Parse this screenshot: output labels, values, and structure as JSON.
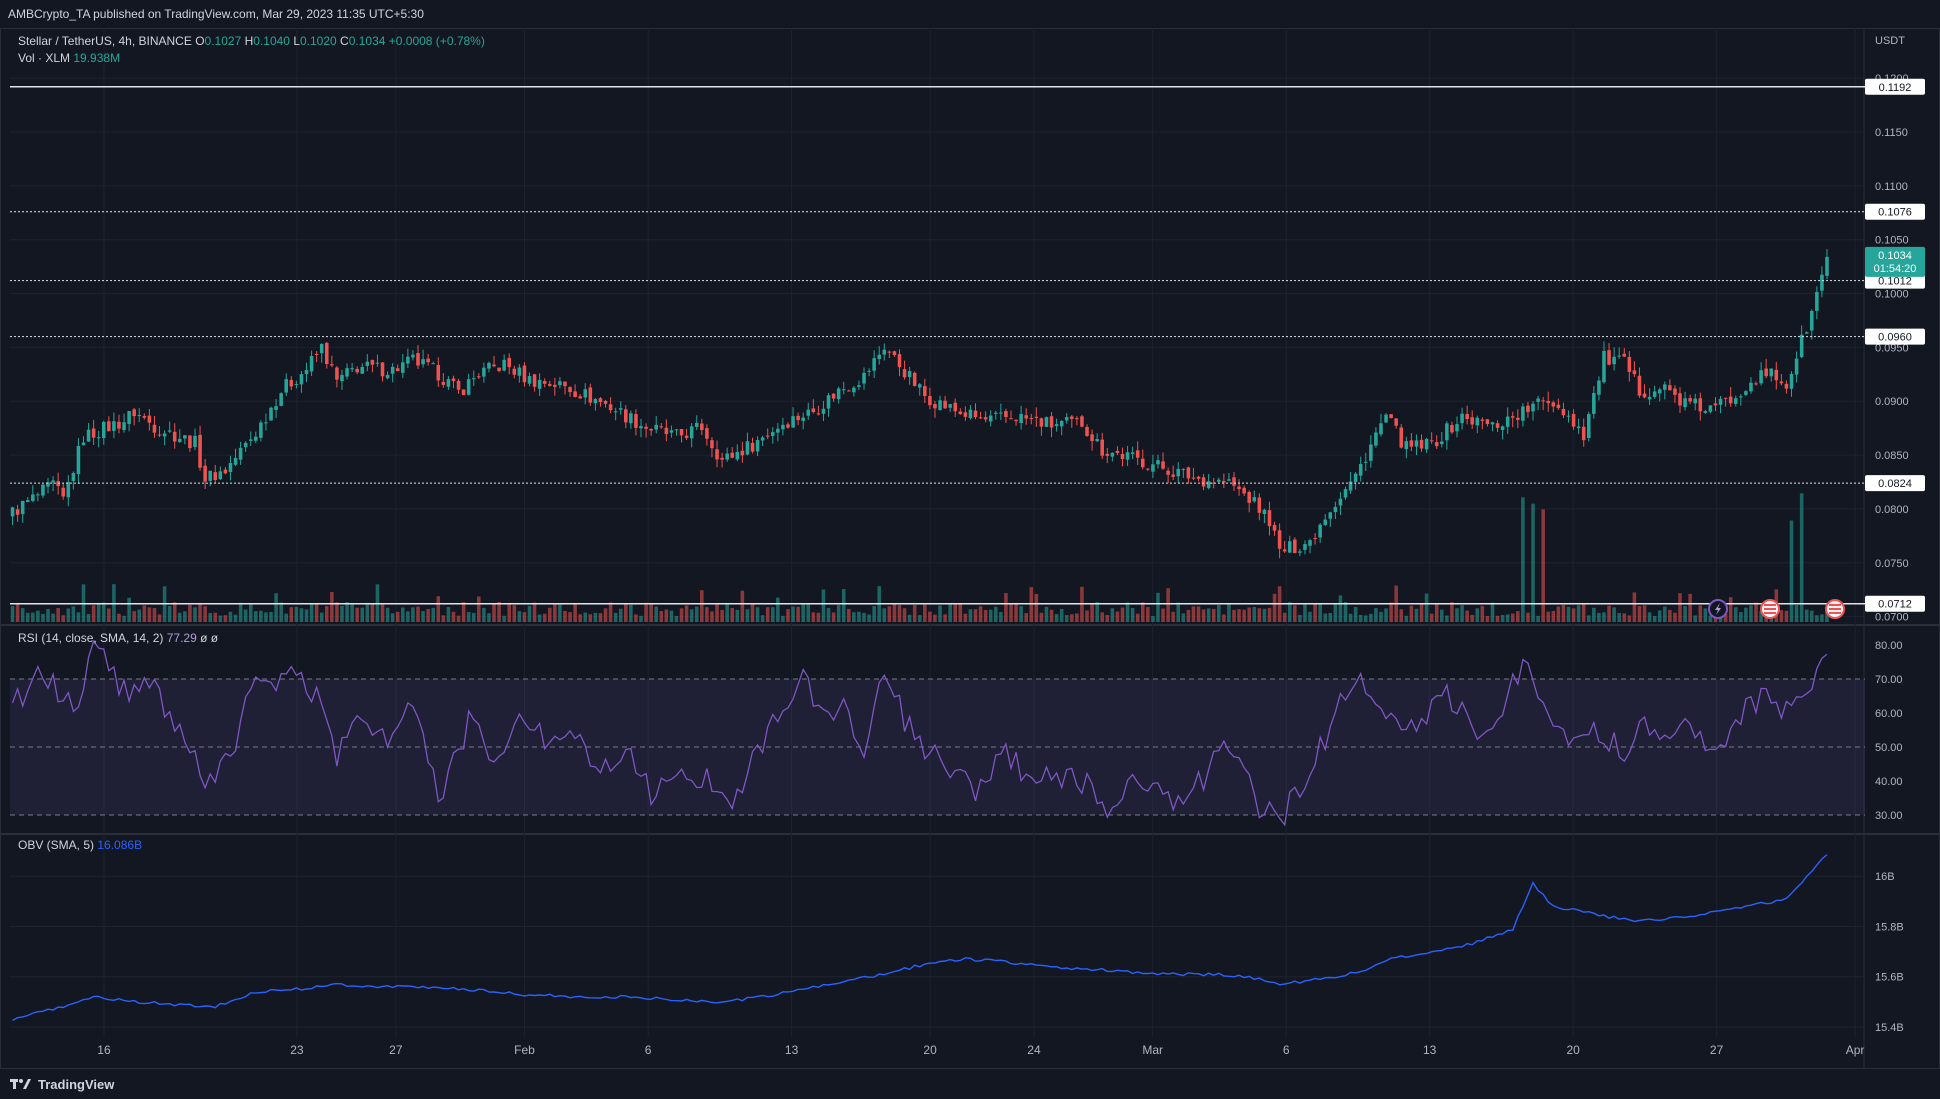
{
  "header": {
    "publish_text": "AMBCrypto_TA published on TradingView.com, Mar 29, 2023 11:35 UTC+5:30"
  },
  "footer": {
    "brand": "TradingView"
  },
  "symbol": {
    "title": "Stellar / TetherUS, 4h, BINANCE",
    "o_label": "O",
    "o": "0.1027",
    "h_label": "H",
    "h": "0.1040",
    "l_label": "L",
    "l": "0.1020",
    "c_label": "C",
    "c": "0.1034",
    "change": "+0.0008 (+0.78%)",
    "vol_label": "Vol · XLM",
    "vol_value": "19.938M"
  },
  "rsi_legend": {
    "label": "RSI (14, close, SMA, 14, 2)",
    "value": "77.29",
    "extra": "ø ø"
  },
  "obv_legend": {
    "label": "OBV (SMA, 5)",
    "value": "16.086B"
  },
  "colors": {
    "up": "#26a69a",
    "down": "#ef5350",
    "rsi": "#7e57c2",
    "obv": "#2962ff",
    "background": "#131722"
  },
  "icons": [
    "lightning-event-icon",
    "us-flag-event-icon",
    "us-flag-event-icon"
  ],
  "chart_data": [
    {
      "type": "candlestick",
      "title": "Stellar / TetherUS, 4h, BINANCE",
      "y_axis_label": "USDT",
      "ylim": [
        0.0695,
        0.1215
      ],
      "y_ticks": [
        "0.1200",
        "0.1150",
        "0.1100",
        "0.1050",
        "0.1000",
        "0.0950",
        "0.0900",
        "0.0850",
        "0.0800",
        "0.0750",
        "0.0700"
      ],
      "x_ticks": [
        "16",
        "23",
        "27",
        "Feb",
        "6",
        "13",
        "20",
        "24",
        "Mar",
        "6",
        "13",
        "20",
        "27",
        "Apr"
      ],
      "levels": [
        {
          "value": 0.1192,
          "label": "0.1192",
          "style": "solid"
        },
        {
          "value": 0.1076,
          "label": "0.1076",
          "style": "dotted"
        },
        {
          "value": 0.1012,
          "label": "0.1012",
          "style": "dotted"
        },
        {
          "value": 0.096,
          "label": "0.0960",
          "style": "dotted"
        },
        {
          "value": 0.0824,
          "label": "0.0824",
          "style": "dotted"
        },
        {
          "value": 0.0712,
          "label": "0.0712",
          "style": "solid"
        }
      ],
      "last_price": {
        "value": 0.1034,
        "label": "0.1034",
        "countdown": "01:54:20"
      },
      "close_path": [
        [
          0,
          0.0797
        ],
        [
          8,
          0.0822
        ],
        [
          10,
          0.0808
        ],
        [
          14,
          0.0867
        ],
        [
          22,
          0.0882
        ],
        [
          24,
          0.089
        ],
        [
          28,
          0.0877
        ],
        [
          36,
          0.0861
        ],
        [
          38,
          0.0828
        ],
        [
          42,
          0.0836
        ],
        [
          48,
          0.0871
        ],
        [
          53,
          0.091
        ],
        [
          58,
          0.093
        ],
        [
          61,
          0.095
        ],
        [
          64,
          0.0918
        ],
        [
          68,
          0.0932
        ],
        [
          75,
          0.0929
        ],
        [
          79,
          0.0938
        ],
        [
          84,
          0.0926
        ],
        [
          88,
          0.0908
        ],
        [
          92,
          0.0926
        ],
        [
          97,
          0.0934
        ],
        [
          102,
          0.092
        ],
        [
          108,
          0.0915
        ],
        [
          112,
          0.0908
        ],
        [
          118,
          0.0895
        ],
        [
          125,
          0.0876
        ],
        [
          131,
          0.0867
        ],
        [
          136,
          0.0876
        ],
        [
          140,
          0.0845
        ],
        [
          146,
          0.086
        ],
        [
          152,
          0.088
        ],
        [
          158,
          0.0891
        ],
        [
          163,
          0.091
        ],
        [
          168,
          0.0923
        ],
        [
          172,
          0.0951
        ],
        [
          176,
          0.0928
        ],
        [
          180,
          0.0905
        ],
        [
          186,
          0.0891
        ],
        [
          192,
          0.0882
        ],
        [
          198,
          0.0886
        ],
        [
          205,
          0.0878
        ],
        [
          211,
          0.088
        ],
        [
          215,
          0.0855
        ],
        [
          221,
          0.0847
        ],
        [
          226,
          0.084
        ],
        [
          229,
          0.0835
        ],
        [
          234,
          0.0828
        ],
        [
          240,
          0.0824
        ],
        [
          244,
          0.081
        ],
        [
          248,
          0.079
        ],
        [
          250,
          0.076
        ],
        [
          256,
          0.077
        ],
        [
          259,
          0.0795
        ],
        [
          265,
          0.083
        ],
        [
          268,
          0.086
        ],
        [
          271,
          0.0886
        ],
        [
          275,
          0.0856
        ],
        [
          280,
          0.086
        ],
        [
          286,
          0.0885
        ],
        [
          292,
          0.0877
        ],
        [
          298,
          0.089
        ],
        [
          303,
          0.0902
        ],
        [
          306,
          0.0892
        ],
        [
          310,
          0.087
        ],
        [
          314,
          0.094
        ],
        [
          318,
          0.0935
        ],
        [
          321,
          0.091
        ],
        [
          326,
          0.0912
        ],
        [
          330,
          0.0898
        ],
        [
          335,
          0.0892
        ],
        [
          339,
          0.0902
        ],
        [
          343,
          0.092
        ],
        [
          347,
          0.0925
        ],
        [
          350,
          0.0915
        ],
        [
          355,
          0.0982
        ],
        [
          358,
          0.1034
        ]
      ],
      "volume_label": "Vol · XLM",
      "volume_spikes": [
        [
          298,
          "high"
        ],
        [
          300,
          "high"
        ],
        [
          302,
          "high"
        ],
        [
          351,
          "high"
        ],
        [
          353,
          "high"
        ]
      ]
    },
    {
      "type": "line",
      "title": "RSI (14, close, SMA, 14, 2)",
      "ylim": [
        25,
        85
      ],
      "y_ticks": [
        "80.00",
        "70.00",
        "60.00",
        "50.00",
        "40.00",
        "30.00"
      ],
      "bands": {
        "upper": 70,
        "middle": 50,
        "lower": 30
      },
      "last_value": 77.29,
      "path": [
        [
          0,
          62
        ],
        [
          6,
          72
        ],
        [
          12,
          60
        ],
        [
          16,
          80
        ],
        [
          22,
          66
        ],
        [
          26,
          71
        ],
        [
          30,
          62
        ],
        [
          34,
          54
        ],
        [
          38,
          36
        ],
        [
          44,
          50
        ],
        [
          48,
          73
        ],
        [
          52,
          68
        ],
        [
          56,
          71
        ],
        [
          60,
          65
        ],
        [
          64,
          48
        ],
        [
          68,
          58
        ],
        [
          74,
          53
        ],
        [
          80,
          62
        ],
        [
          84,
          33
        ],
        [
          90,
          57
        ],
        [
          96,
          45
        ],
        [
          100,
          60
        ],
        [
          106,
          50
        ],
        [
          110,
          58
        ],
        [
          116,
          42
        ],
        [
          122,
          50
        ],
        [
          126,
          35
        ],
        [
          132,
          42
        ],
        [
          138,
          40
        ],
        [
          142,
          35
        ],
        [
          146,
          46
        ],
        [
          150,
          57
        ],
        [
          156,
          70
        ],
        [
          160,
          58
        ],
        [
          164,
          63
        ],
        [
          168,
          48
        ],
        [
          172,
          71
        ],
        [
          176,
          58
        ],
        [
          180,
          49
        ],
        [
          186,
          42
        ],
        [
          190,
          38
        ],
        [
          196,
          47
        ],
        [
          202,
          40
        ],
        [
          210,
          42
        ],
        [
          216,
          31
        ],
        [
          222,
          43
        ],
        [
          228,
          33
        ],
        [
          232,
          35
        ],
        [
          236,
          43
        ],
        [
          240,
          52
        ],
        [
          246,
          32
        ],
        [
          250,
          28
        ],
        [
          254,
          38
        ],
        [
          258,
          50
        ],
        [
          262,
          62
        ],
        [
          266,
          70
        ],
        [
          270,
          62
        ],
        [
          274,
          52
        ],
        [
          278,
          58
        ],
        [
          282,
          68
        ],
        [
          286,
          60
        ],
        [
          290,
          53
        ],
        [
          294,
          62
        ],
        [
          298,
          74
        ],
        [
          302,
          66
        ],
        [
          306,
          52
        ],
        [
          310,
          55
        ],
        [
          314,
          54
        ],
        [
          318,
          48
        ],
        [
          322,
          58
        ],
        [
          326,
          55
        ],
        [
          330,
          56
        ],
        [
          336,
          50
        ],
        [
          340,
          58
        ],
        [
          346,
          65
        ],
        [
          350,
          60
        ],
        [
          356,
          72
        ],
        [
          358,
          77.29
        ]
      ]
    },
    {
      "type": "line",
      "title": "OBV (SMA, 5)",
      "ylim": [
        15.36,
        16.16
      ],
      "y_ticks": [
        "16B",
        "15.8B",
        "15.6B",
        "15.4B"
      ],
      "last_value": 16.086,
      "path": [
        [
          0,
          15.43
        ],
        [
          8,
          15.47
        ],
        [
          16,
          15.52
        ],
        [
          24,
          15.5
        ],
        [
          32,
          15.49
        ],
        [
          40,
          15.48
        ],
        [
          48,
          15.54
        ],
        [
          56,
          15.55
        ],
        [
          64,
          15.57
        ],
        [
          72,
          15.56
        ],
        [
          80,
          15.56
        ],
        [
          90,
          15.55
        ],
        [
          100,
          15.53
        ],
        [
          110,
          15.52
        ],
        [
          120,
          15.52
        ],
        [
          130,
          15.51
        ],
        [
          140,
          15.5
        ],
        [
          148,
          15.52
        ],
        [
          156,
          15.55
        ],
        [
          164,
          15.58
        ],
        [
          172,
          15.61
        ],
        [
          180,
          15.65
        ],
        [
          188,
          15.67
        ],
        [
          196,
          15.66
        ],
        [
          204,
          15.64
        ],
        [
          212,
          15.63
        ],
        [
          220,
          15.62
        ],
        [
          228,
          15.61
        ],
        [
          236,
          15.61
        ],
        [
          244,
          15.6
        ],
        [
          250,
          15.57
        ],
        [
          258,
          15.59
        ],
        [
          266,
          15.62
        ],
        [
          272,
          15.67
        ],
        [
          280,
          15.7
        ],
        [
          288,
          15.73
        ],
        [
          296,
          15.79
        ],
        [
          300,
          15.97
        ],
        [
          304,
          15.88
        ],
        [
          312,
          15.85
        ],
        [
          320,
          15.82
        ],
        [
          330,
          15.84
        ],
        [
          340,
          15.87
        ],
        [
          350,
          15.91
        ],
        [
          358,
          16.086
        ]
      ]
    }
  ]
}
